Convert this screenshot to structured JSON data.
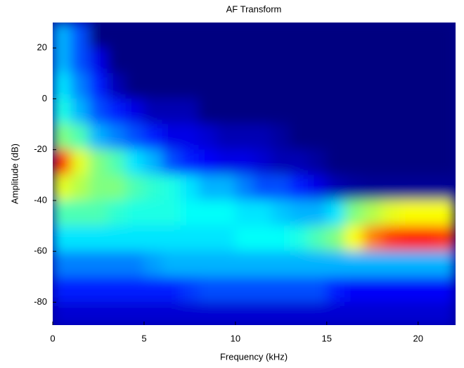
{
  "chart_data": {
    "type": "heatmap",
    "title": "AF Transform",
    "x_label": "Frequency (kHz)",
    "y_label": "Amplitude (dB)",
    "colormap": "jet",
    "zlim": [
      0,
      1
    ],
    "x": [
      0.5,
      1.5,
      2.5,
      3.5,
      4.5,
      5.5,
      6.5,
      7.5,
      8.5,
      9.5,
      10.5,
      11.5,
      12.5,
      13.5,
      14.5,
      15.5,
      16.5,
      17.5,
      18.5,
      19.5,
      20.5,
      21.5
    ],
    "y": [
      25,
      15,
      5,
      -5,
      -15,
      -25,
      -35,
      -45,
      -55,
      -65,
      -75,
      -85
    ],
    "z": [
      [
        0.3,
        0.2,
        0,
        0,
        0,
        0,
        0,
        0,
        0,
        0,
        0,
        0,
        0,
        0,
        0,
        0,
        0,
        0,
        0,
        0,
        0,
        0
      ],
      [
        0.3,
        0.2,
        0.1,
        0,
        0,
        0,
        0,
        0,
        0,
        0,
        0,
        0,
        0,
        0,
        0,
        0,
        0,
        0,
        0,
        0,
        0,
        0
      ],
      [
        0.35,
        0.25,
        0.15,
        0.05,
        0,
        0,
        0,
        0,
        0,
        0,
        0,
        0,
        0,
        0,
        0,
        0,
        0,
        0,
        0,
        0,
        0,
        0
      ],
      [
        0.4,
        0.3,
        0.2,
        0.15,
        0.1,
        0.05,
        0.05,
        0.05,
        0,
        0,
        0,
        0,
        0,
        0,
        0,
        0,
        0,
        0,
        0,
        0,
        0,
        0
      ],
      [
        0.5,
        0.45,
        0.3,
        0.25,
        0.2,
        0.15,
        0.1,
        0.1,
        0.08,
        0.05,
        0.05,
        0.05,
        0.03,
        0,
        0,
        0,
        0,
        0,
        0,
        0,
        0,
        0
      ],
      [
        0.85,
        0.6,
        0.5,
        0.45,
        0.35,
        0.3,
        0.2,
        0.15,
        0.12,
        0.1,
        0.1,
        0.08,
        0.05,
        0.05,
        0.03,
        0,
        0,
        0,
        0,
        0,
        0,
        0
      ],
      [
        0.6,
        0.55,
        0.5,
        0.5,
        0.45,
        0.42,
        0.4,
        0.35,
        0.3,
        0.3,
        0.25,
        0.2,
        0.2,
        0.15,
        0.1,
        0.05,
        0.03,
        0.02,
        0.02,
        0.02,
        0.02,
        0.02
      ],
      [
        0.45,
        0.45,
        0.45,
        0.42,
        0.4,
        0.4,
        0.4,
        0.38,
        0.38,
        0.38,
        0.35,
        0.35,
        0.32,
        0.3,
        0.3,
        0.35,
        0.5,
        0.55,
        0.6,
        0.62,
        0.62,
        0.62
      ],
      [
        0.35,
        0.35,
        0.35,
        0.35,
        0.35,
        0.35,
        0.35,
        0.35,
        0.35,
        0.35,
        0.38,
        0.38,
        0.38,
        0.4,
        0.45,
        0.5,
        0.62,
        0.75,
        0.82,
        0.85,
        0.85,
        0.82
      ],
      [
        0.25,
        0.25,
        0.25,
        0.25,
        0.25,
        0.28,
        0.3,
        0.3,
        0.3,
        0.3,
        0.3,
        0.3,
        0.3,
        0.3,
        0.3,
        0.3,
        0.3,
        0.3,
        0.3,
        0.3,
        0.3,
        0.3
      ],
      [
        0.15,
        0.15,
        0.15,
        0.15,
        0.15,
        0.15,
        0.15,
        0.18,
        0.2,
        0.2,
        0.2,
        0.2,
        0.2,
        0.2,
        0.2,
        0.15,
        0.12,
        0.12,
        0.12,
        0.12,
        0.12,
        0.12
      ],
      [
        0.08,
        0.08,
        0.08,
        0.08,
        0.08,
        0.08,
        0.08,
        0.08,
        0.08,
        0.08,
        0.08,
        0.08,
        0.08,
        0.08,
        0.08,
        0.08,
        0.08,
        0.08,
        0.08,
        0.08,
        0.08,
        0.08
      ]
    ],
    "xlim": [
      0,
      22.05
    ],
    "xticks": [
      0,
      5,
      10,
      15,
      20
    ],
    "ylim": [
      -89,
      30
    ],
    "yticks": [
      20,
      0,
      -20,
      -40,
      -60,
      -80
    ]
  }
}
